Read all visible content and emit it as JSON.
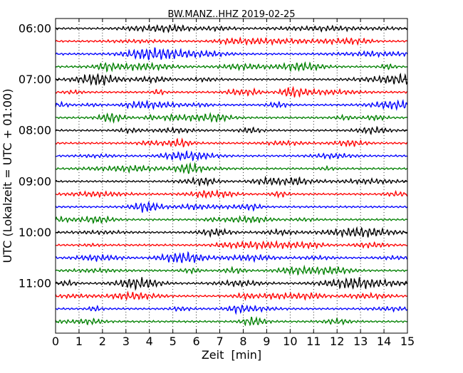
{
  "chart_data": {
    "type": "line",
    "title": "BW.MANZ..HHZ 2019-02-25",
    "xlabel": "Zeit  [min]",
    "ylabel": "UTC (Lokalzeit = UTC + 01:00)",
    "xlim": [
      0,
      15
    ],
    "x_ticks": [
      0,
      1,
      2,
      3,
      4,
      5,
      6,
      7,
      8,
      9,
      10,
      11,
      12,
      13,
      14,
      15
    ],
    "x_tick_labels": [
      "0",
      "1",
      "2",
      "3",
      "4",
      "5",
      "6",
      "7",
      "8",
      "9",
      "10",
      "11",
      "12",
      "13",
      "14",
      "15"
    ],
    "y_tick_labels": [
      "06:00",
      "07:00",
      "08:00",
      "09:00",
      "10:00",
      "11:00"
    ],
    "trace_interval_minutes": 15,
    "trace_count": 24,
    "grid": "vertical-dotted",
    "series_colors": [
      "#000000",
      "#ff0000",
      "#0000ff",
      "#008000"
    ],
    "series": [
      {
        "start": "06:00",
        "color": "#000000"
      },
      {
        "start": "06:15",
        "color": "#ff0000"
      },
      {
        "start": "06:30",
        "color": "#0000ff"
      },
      {
        "start": "06:45",
        "color": "#008000"
      },
      {
        "start": "07:00",
        "color": "#000000"
      },
      {
        "start": "07:15",
        "color": "#ff0000"
      },
      {
        "start": "07:30",
        "color": "#0000ff"
      },
      {
        "start": "07:45",
        "color": "#008000"
      },
      {
        "start": "08:00",
        "color": "#000000"
      },
      {
        "start": "08:15",
        "color": "#ff0000"
      },
      {
        "start": "08:30",
        "color": "#0000ff"
      },
      {
        "start": "08:45",
        "color": "#008000"
      },
      {
        "start": "09:00",
        "color": "#000000"
      },
      {
        "start": "09:15",
        "color": "#ff0000"
      },
      {
        "start": "09:30",
        "color": "#0000ff"
      },
      {
        "start": "09:45",
        "color": "#008000"
      },
      {
        "start": "10:00",
        "color": "#000000"
      },
      {
        "start": "10:15",
        "color": "#ff0000"
      },
      {
        "start": "10:30",
        "color": "#0000ff"
      },
      {
        "start": "10:45",
        "color": "#008000"
      },
      {
        "start": "11:00",
        "color": "#000000"
      },
      {
        "start": "11:15",
        "color": "#ff0000"
      },
      {
        "start": "11:30",
        "color": "#0000ff"
      },
      {
        "start": "11:45",
        "color": "#008000"
      }
    ]
  }
}
